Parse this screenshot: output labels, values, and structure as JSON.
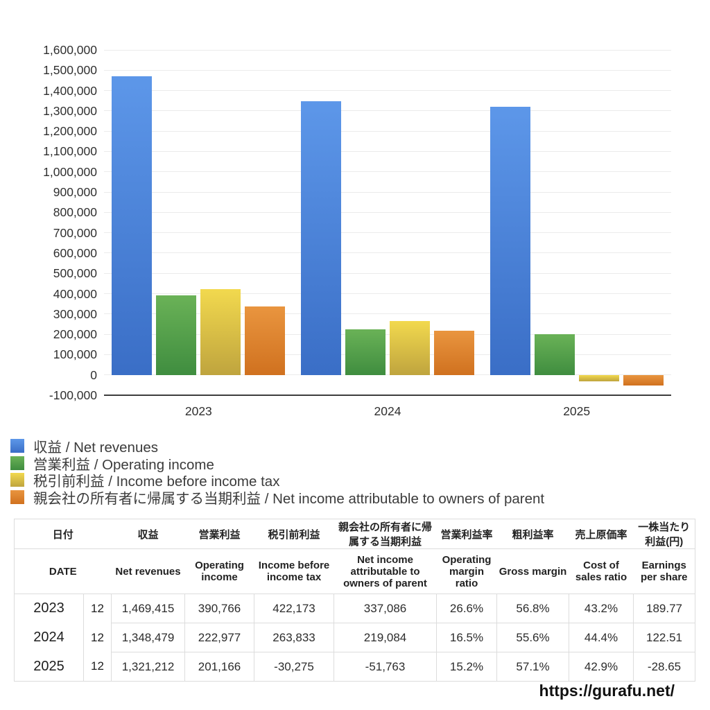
{
  "page": {
    "url_text": "https://gurafu.net/"
  },
  "colors": {
    "negative_red": "#d0453e",
    "grid": "#ebebeb",
    "axis": "#3c3c3c",
    "table_border": "#dcdcdc",
    "text": "#2f2f2f"
  },
  "chart_data": {
    "type": "bar",
    "categories": [
      "2023",
      "2024",
      "2025"
    ],
    "series": [
      {
        "label": "収益 / Net revenues",
        "color_top": "#5d97e9",
        "color_bottom": "#3a6ec6",
        "values": [
          1469415,
          1348479,
          1321212
        ]
      },
      {
        "label": "営業利益 / Operating income",
        "color_top": "#6ab257",
        "color_bottom": "#3f8d3f",
        "values": [
          390766,
          222977,
          201166
        ]
      },
      {
        "label": "税引前利益 / Income before income tax",
        "color_top": "#f2d94e",
        "color_bottom": "#bfa43e",
        "values": [
          422173,
          263833,
          -30275
        ]
      },
      {
        "label": "親会社の所有者に帰属する当期利益 / Net income attributable to owners of parent",
        "color_top": "#e9953f",
        "color_bottom": "#d0711f",
        "values": [
          337086,
          219084,
          -51763
        ]
      }
    ],
    "title": "",
    "xlabel": "",
    "ylabel": "",
    "ylim": [
      -100000,
      1600000
    ],
    "ytick_step": 100000,
    "grid": true,
    "legend_position": "bottom-left"
  },
  "table": {
    "columns": [
      {
        "ja": "日付",
        "en": "DATE",
        "span": 2
      },
      {
        "ja": "収益",
        "en": "Net revenues"
      },
      {
        "ja": "営業利益",
        "en": "Operating income"
      },
      {
        "ja": "税引前利益",
        "en": "Income before income tax"
      },
      {
        "ja": "親会社の所有者に帰属する当期利益",
        "en": "Net income attributable to owners of parent",
        "small_en": true
      },
      {
        "ja": "営業利益率",
        "en": "Operating margin ratio"
      },
      {
        "ja": "粗利益率",
        "en": "Gross margin"
      },
      {
        "ja": "売上原価率",
        "en": "Cost of sales ratio"
      },
      {
        "ja": "一株当たり利益(円)",
        "en": "Earnings per share",
        "small_ja": true
      }
    ],
    "rows": [
      {
        "year": "2023",
        "month": "12",
        "values": [
          "1,469,415",
          "390,766",
          "422,173",
          "337,086",
          "26.6%",
          "56.8%",
          "43.2%",
          "189.77"
        ]
      },
      {
        "year": "2024",
        "month": "12",
        "values": [
          "1,348,479",
          "222,977",
          "263,833",
          "219,084",
          "16.5%",
          "55.6%",
          "44.4%",
          "122.51"
        ]
      },
      {
        "year": "2025",
        "month": "12",
        "values": [
          "1,321,212",
          "201,166",
          "-30,275",
          "-51,763",
          "15.2%",
          "57.1%",
          "42.9%",
          "-28.65"
        ]
      }
    ]
  }
}
